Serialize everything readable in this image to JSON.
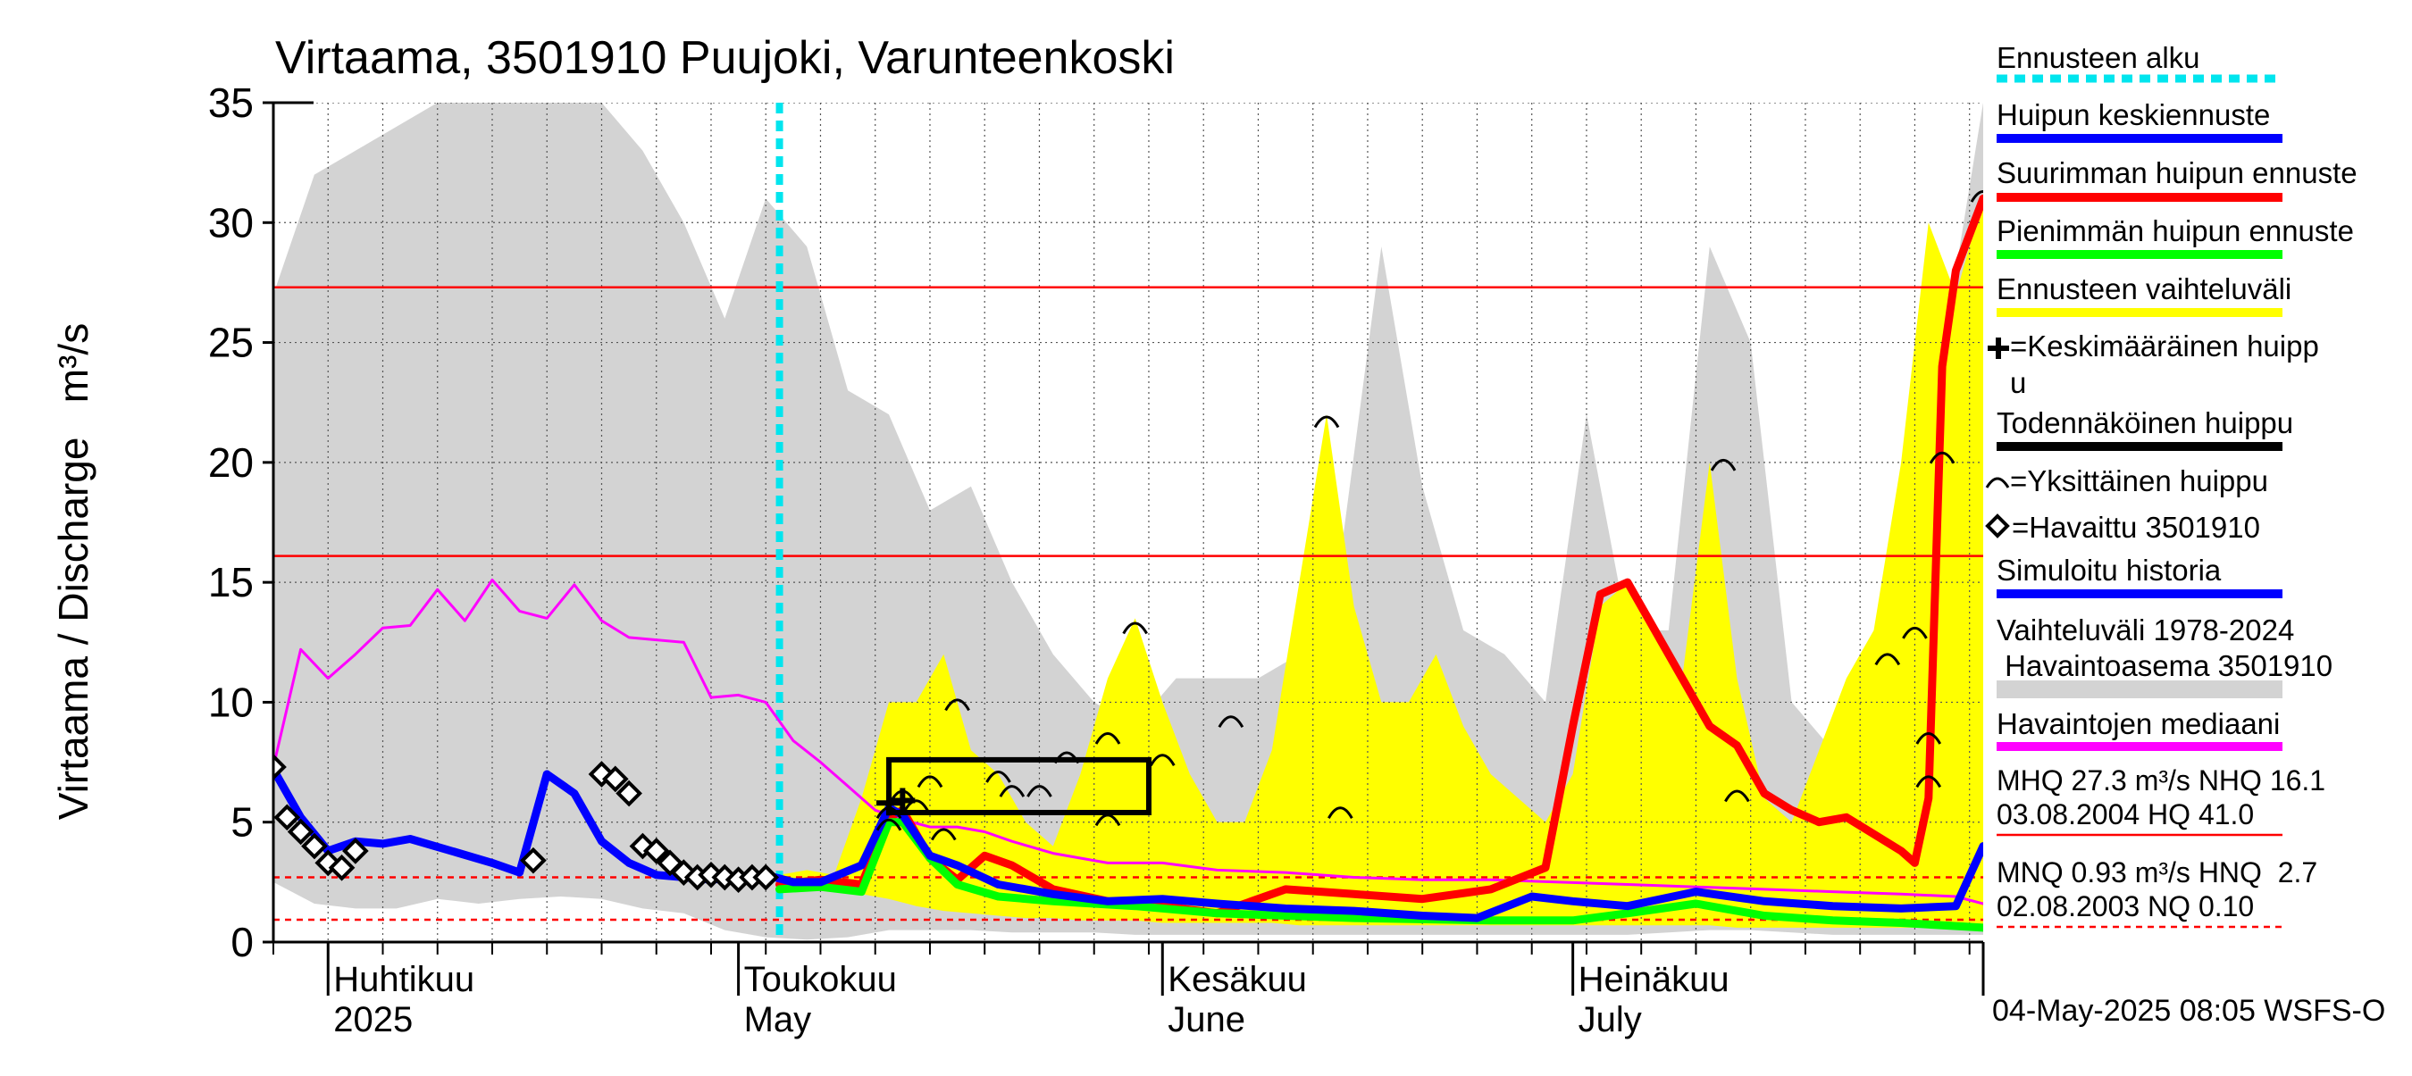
{
  "chart_data": {
    "type": "line",
    "title": "Virtaama, 3501910 Puujoki, Varunteenkoski",
    "ylabel": "Virtaama / Discharge   m³/s",
    "ylim": [
      0,
      35
    ],
    "yticks": [
      "0",
      "5",
      "10",
      "15",
      "20",
      "25",
      "30",
      "35"
    ],
    "xlim": [
      "2025-03-28",
      "2025-07-31"
    ],
    "month_labels": [
      {
        "fi": "Huhtikuu",
        "en": "2025",
        "date": "2025-04-01"
      },
      {
        "fi": "Toukokuu",
        "en": "May",
        "date": "2025-05-01"
      },
      {
        "fi": "Kesäkuu",
        "en": "June",
        "date": "2025-06-01"
      },
      {
        "fi": "Heinäkuu",
        "en": "July",
        "date": "2025-07-01"
      }
    ],
    "forecast_start": "2025-05-04",
    "reference_lines": [
      {
        "name": "MHQ",
        "value": 27.3,
        "style": "solid",
        "color": "#ff0000"
      },
      {
        "name": "NHQ",
        "value": 16.1,
        "style": "solid",
        "color": "#ff0000"
      },
      {
        "name": "MNQ",
        "value": 0.93,
        "style": "dashed",
        "color": "#ff0000"
      },
      {
        "name": "HNQ",
        "value": 2.7,
        "style": "dashed",
        "color": "#ff0000"
      }
    ],
    "legend": [
      {
        "label": "Ennusteen alku",
        "color": "#00e5ee",
        "style": "dashed"
      },
      {
        "label": "Huipun keskiennuste",
        "color": "#0000ff",
        "style": "line"
      },
      {
        "label": "Suurimman huipun ennuste",
        "color": "#ff0000",
        "style": "line"
      },
      {
        "label": "Pienimmän huipun ennuste",
        "color": "#00ff00",
        "style": "line"
      },
      {
        "label": "Ennusteen vaihteluväli",
        "color": "#ffff00",
        "style": "line"
      },
      {
        "label": "=Keskimääräinen huipp",
        "label2": "u",
        "symbol": "cross"
      },
      {
        "label": "Todennäköinen huippu",
        "color": "#000000",
        "style": "line"
      },
      {
        "label": "=Yksittäinen huippu",
        "symbol": "arc"
      },
      {
        "label": "=Havaittu 3501910",
        "symbol": "diamond"
      },
      {
        "label": "Simuloitu historia",
        "color": "#0000ff",
        "style": "line"
      },
      {
        "label": "Vaihteluväli 1978-2024",
        "label2": " Havaintoasema 3501910",
        "color": "#d3d3d3",
        "style": "band"
      },
      {
        "label": "Havaintojen mediaani",
        "color": "#ff00ff",
        "style": "line"
      }
    ],
    "stats": [
      {
        "line1": "MHQ 27.3 m³/s NHQ 16.1",
        "line2": "03.08.2004 HQ 41.0"
      },
      {
        "line1": "MNQ 0.93 m³/s HNQ  2.7",
        "line2": "02.08.2003 NQ 0.10"
      }
    ],
    "timestamp": "04-May-2025 08:05 WSFS-O",
    "history_band": {
      "x": [
        "2025-03-28",
        "2025-03-31",
        "2025-04-03",
        "2025-04-06",
        "2025-04-09",
        "2025-04-12",
        "2025-04-15",
        "2025-04-18",
        "2025-04-21",
        "2025-04-24",
        "2025-04-27",
        "2025-04-30",
        "2025-05-03",
        "2025-05-06",
        "2025-05-09",
        "2025-05-12",
        "2025-05-15",
        "2025-05-18",
        "2025-05-21",
        "2025-05-24",
        "2025-05-27",
        "2025-05-30",
        "2025-06-02",
        "2025-06-05",
        "2025-06-08",
        "2025-06-11",
        "2025-06-14",
        "2025-06-17",
        "2025-06-20",
        "2025-06-23",
        "2025-06-26",
        "2025-06-29",
        "2025-07-02",
        "2025-07-05",
        "2025-07-08",
        "2025-07-11",
        "2025-07-14",
        "2025-07-17",
        "2025-07-20",
        "2025-07-23",
        "2025-07-26",
        "2025-07-29",
        "2025-07-31"
      ],
      "upper": [
        27,
        32,
        33,
        34,
        35,
        35,
        35,
        35,
        35,
        33,
        30,
        26,
        31,
        29,
        23,
        22,
        18,
        19,
        15,
        12,
        10,
        9,
        11,
        11,
        11,
        12,
        16,
        29,
        19,
        13,
        12,
        10,
        22,
        13,
        13,
        29,
        25,
        10,
        8,
        10,
        12,
        28,
        35
      ],
      "lower": [
        2.5,
        1.6,
        1.4,
        1.4,
        1.8,
        1.6,
        1.8,
        1.9,
        1.8,
        1.4,
        1.2,
        0.5,
        0.2,
        0.1,
        0.2,
        0.5,
        0.5,
        0.5,
        0.4,
        0.4,
        0.4,
        0.3,
        0.3,
        0.3,
        0.3,
        0.3,
        0.3,
        0.3,
        0.3,
        0.3,
        0.3,
        0.3,
        0.3,
        0.3,
        0.4,
        0.5,
        0.5,
        0.4,
        0.3,
        0.3,
        0.3,
        0.3,
        0.3
      ]
    },
    "forecast_band": {
      "x": [
        "2025-05-04",
        "2025-05-06",
        "2025-05-08",
        "2025-05-10",
        "2025-05-12",
        "2025-05-14",
        "2025-05-16",
        "2025-05-18",
        "2025-05-20",
        "2025-05-22",
        "2025-05-24",
        "2025-05-26",
        "2025-05-28",
        "2025-05-30",
        "2025-06-01",
        "2025-06-03",
        "2025-06-05",
        "2025-06-07",
        "2025-06-09",
        "2025-06-11",
        "2025-06-13",
        "2025-06-15",
        "2025-06-17",
        "2025-06-19",
        "2025-06-21",
        "2025-06-23",
        "2025-06-25",
        "2025-06-27",
        "2025-06-29",
        "2025-07-01",
        "2025-07-03",
        "2025-07-05",
        "2025-07-07",
        "2025-07-09",
        "2025-07-11",
        "2025-07-13",
        "2025-07-15",
        "2025-07-17",
        "2025-07-19",
        "2025-07-21",
        "2025-07-23",
        "2025-07-25",
        "2025-07-27",
        "2025-07-29",
        "2025-07-31"
      ],
      "upper": [
        2.8,
        3.0,
        2.8,
        6,
        10,
        10,
        12,
        8,
        7,
        5,
        4,
        7,
        11,
        13.5,
        10,
        7,
        5,
        5,
        8,
        15,
        22,
        14,
        10,
        10,
        12,
        9,
        7,
        6,
        5,
        7,
        14,
        15,
        13,
        11,
        20,
        11,
        6,
        5,
        8,
        11,
        13,
        20,
        30,
        27,
        31
      ],
      "lower": [
        2.4,
        2.2,
        2.2,
        2.0,
        1.8,
        1.5,
        1.3,
        1.2,
        1.1,
        1.0,
        1.0,
        0.9,
        0.9,
        0.9,
        0.8,
        0.8,
        0.8,
        0.8,
        0.8,
        0.7,
        0.7,
        0.7,
        0.7,
        0.7,
        0.7,
        0.7,
        0.7,
        0.7,
        0.7,
        0.7,
        0.7,
        0.7,
        0.7,
        0.7,
        0.7,
        0.6,
        0.6,
        0.6,
        0.6,
        0.6,
        0.6,
        0.6,
        0.6,
        0.6,
        0.6
      ]
    },
    "series": [
      {
        "name": "Havaintojen mediaani",
        "color": "#ff00ff",
        "width": 3,
        "x": [
          "2025-03-28",
          "2025-03-30",
          "2025-04-01",
          "2025-04-03",
          "2025-04-05",
          "2025-04-07",
          "2025-04-09",
          "2025-04-11",
          "2025-04-13",
          "2025-04-15",
          "2025-04-17",
          "2025-04-19",
          "2025-04-21",
          "2025-04-23",
          "2025-04-25",
          "2025-04-27",
          "2025-04-29",
          "2025-05-01",
          "2025-05-03",
          "2025-05-05",
          "2025-05-07",
          "2025-05-09",
          "2025-05-11",
          "2025-05-13",
          "2025-05-15",
          "2025-05-17",
          "2025-05-19",
          "2025-05-21",
          "2025-05-24",
          "2025-05-28",
          "2025-06-01",
          "2025-06-05",
          "2025-06-10",
          "2025-06-15",
          "2025-06-20",
          "2025-06-25",
          "2025-06-30",
          "2025-07-05",
          "2025-07-10",
          "2025-07-15",
          "2025-07-20",
          "2025-07-25",
          "2025-07-29",
          "2025-07-31"
        ],
        "y": [
          7.3,
          12.2,
          11,
          12,
          13.1,
          13.2,
          14.7,
          13.4,
          15.1,
          13.8,
          13.5,
          14.9,
          13.4,
          12.7,
          12.6,
          12.5,
          10.2,
          10.3,
          10,
          8.4,
          7.5,
          6.5,
          5.5,
          5.1,
          4.8,
          4.8,
          4.6,
          4.2,
          3.7,
          3.3,
          3.3,
          3.0,
          2.9,
          2.7,
          2.6,
          2.6,
          2.5,
          2.4,
          2.3,
          2.2,
          2.1,
          2.0,
          1.9,
          1.6
        ]
      },
      {
        "name": "Suurimman huipun ennuste",
        "color": "#ff0000",
        "width": 9,
        "x": [
          "2025-05-04",
          "2025-05-07",
          "2025-05-10",
          "2025-05-12",
          "2025-05-13",
          "2025-05-15",
          "2025-05-17",
          "2025-05-19",
          "2025-05-21",
          "2025-05-24",
          "2025-05-28",
          "2025-06-01",
          "2025-06-05",
          "2025-06-10",
          "2025-06-15",
          "2025-06-20",
          "2025-06-25",
          "2025-06-29",
          "2025-07-01",
          "2025-07-03",
          "2025-07-05",
          "2025-07-07",
          "2025-07-09",
          "2025-07-11",
          "2025-07-13",
          "2025-07-15",
          "2025-07-17",
          "2025-07-19",
          "2025-07-21",
          "2025-07-23",
          "2025-07-25",
          "2025-07-26",
          "2025-07-27",
          "2025-07-28",
          "2025-07-29",
          "2025-07-31"
        ],
        "y": [
          2.4,
          2.6,
          2.4,
          5.2,
          5.5,
          3.5,
          2.6,
          3.6,
          3.2,
          2.2,
          1.7,
          1.5,
          1.2,
          2.2,
          2.0,
          1.8,
          2.2,
          3.1,
          9,
          14.5,
          15,
          13,
          11,
          9,
          8.2,
          6.2,
          5.5,
          5.0,
          5.2,
          4.5,
          3.8,
          3.3,
          6.0,
          24,
          28,
          31
        ]
      },
      {
        "name": "Pienimmän huipun ennuste",
        "color": "#00ff00",
        "width": 9,
        "x": [
          "2025-05-04",
          "2025-05-07",
          "2025-05-10",
          "2025-05-12",
          "2025-05-13",
          "2025-05-15",
          "2025-05-17",
          "2025-05-20",
          "2025-05-24",
          "2025-05-30",
          "2025-06-05",
          "2025-06-15",
          "2025-06-25",
          "2025-07-01",
          "2025-07-05",
          "2025-07-10",
          "2025-07-15",
          "2025-07-20",
          "2025-07-25",
          "2025-07-31"
        ],
        "y": [
          2.2,
          2.3,
          2.1,
          5.0,
          5.0,
          3.5,
          2.4,
          1.9,
          1.7,
          1.5,
          1.2,
          1.0,
          0.9,
          0.9,
          1.2,
          1.6,
          1.1,
          0.9,
          0.8,
          0.6
        ]
      },
      {
        "name": "Huipun keskiennuste",
        "color": "#0000ff",
        "width": 9,
        "x": [
          "2025-03-28",
          "2025-03-30",
          "2025-04-01",
          "2025-04-03",
          "2025-04-05",
          "2025-04-07",
          "2025-04-10",
          "2025-04-13",
          "2025-04-15",
          "2025-04-17",
          "2025-04-19",
          "2025-04-21",
          "2025-04-23",
          "2025-04-25",
          "2025-04-27",
          "2025-04-29",
          "2025-05-01",
          "2025-05-03",
          "2025-05-05",
          "2025-05-07",
          "2025-05-10",
          "2025-05-12",
          "2025-05-13",
          "2025-05-15",
          "2025-05-17",
          "2025-05-20",
          "2025-05-24",
          "2025-05-28",
          "2025-06-01",
          "2025-06-05",
          "2025-06-10",
          "2025-06-15",
          "2025-06-20",
          "2025-06-24",
          "2025-06-28",
          "2025-07-01",
          "2025-07-05",
          "2025-07-10",
          "2025-07-15",
          "2025-07-20",
          "2025-07-25",
          "2025-07-29",
          "2025-07-31"
        ],
        "y": [
          7.2,
          5.2,
          3.8,
          4.2,
          4.1,
          4.3,
          3.8,
          3.3,
          2.9,
          7.0,
          6.2,
          4.2,
          3.3,
          2.8,
          2.7,
          2.6,
          2.7,
          2.8,
          2.5,
          2.5,
          3.2,
          5.6,
          5.3,
          3.6,
          3.2,
          2.4,
          2.0,
          1.7,
          1.8,
          1.6,
          1.4,
          1.3,
          1.1,
          1.0,
          1.9,
          1.7,
          1.5,
          2.1,
          1.7,
          1.5,
          1.4,
          1.5,
          4.0
        ]
      }
    ],
    "observed": {
      "x": [
        "2025-03-28",
        "2025-03-29",
        "2025-03-30",
        "2025-03-31",
        "2025-04-01",
        "2025-04-02",
        "2025-04-03",
        "2025-04-16",
        "2025-04-21",
        "2025-04-22",
        "2025-04-23",
        "2025-04-24",
        "2025-04-25",
        "2025-04-26",
        "2025-04-27",
        "2025-04-28",
        "2025-04-29",
        "2025-04-30",
        "2025-05-01",
        "2025-05-02",
        "2025-05-03"
      ],
      "y": [
        7.3,
        5.2,
        4.6,
        4.0,
        3.3,
        3.1,
        3.8,
        3.4,
        7.0,
        6.8,
        6.2,
        4.0,
        3.8,
        3.3,
        2.9,
        2.7,
        2.8,
        2.7,
        2.6,
        2.7,
        2.7
      ]
    },
    "probable_peak_box": {
      "x0": "2025-05-12",
      "x1": "2025-05-31",
      "y0": 5.4,
      "y1": 7.6
    },
    "mean_peak": [
      {
        "x": "2025-05-12",
        "y": 5.8
      },
      {
        "x": "2025-05-13",
        "y": 5.9
      }
    ],
    "single_peaks": [
      {
        "x": "2025-05-12",
        "y": 5.5
      },
      {
        "x": "2025-05-13",
        "y": 6.2
      },
      {
        "x": "2025-05-14",
        "y": 5.8
      },
      {
        "x": "2025-05-15",
        "y": 6.8
      },
      {
        "x": "2025-05-12",
        "y": 5.0
      },
      {
        "x": "2025-05-16",
        "y": 4.6
      },
      {
        "x": "2025-05-17",
        "y": 10.0
      },
      {
        "x": "2025-05-20",
        "y": 7.0
      },
      {
        "x": "2025-05-21",
        "y": 6.4
      },
      {
        "x": "2025-05-23",
        "y": 6.4
      },
      {
        "x": "2025-05-25",
        "y": 7.8
      },
      {
        "x": "2025-05-28",
        "y": 8.6
      },
      {
        "x": "2025-05-28",
        "y": 5.2
      },
      {
        "x": "2025-05-30",
        "y": 13.2
      },
      {
        "x": "2025-06-01",
        "y": 7.7
      },
      {
        "x": "2025-06-06",
        "y": 9.3
      },
      {
        "x": "2025-06-13",
        "y": 21.8
      },
      {
        "x": "2025-06-14",
        "y": 5.5
      },
      {
        "x": "2025-07-12",
        "y": 20.0
      },
      {
        "x": "2025-07-13",
        "y": 6.2
      },
      {
        "x": "2025-07-24",
        "y": 11.9
      },
      {
        "x": "2025-07-26",
        "y": 13.0
      },
      {
        "x": "2025-07-27",
        "y": 8.6
      },
      {
        "x": "2025-07-27",
        "y": 6.8
      },
      {
        "x": "2025-07-28",
        "y": 20.3
      },
      {
        "x": "2025-07-31",
        "y": 31.2
      }
    ]
  }
}
